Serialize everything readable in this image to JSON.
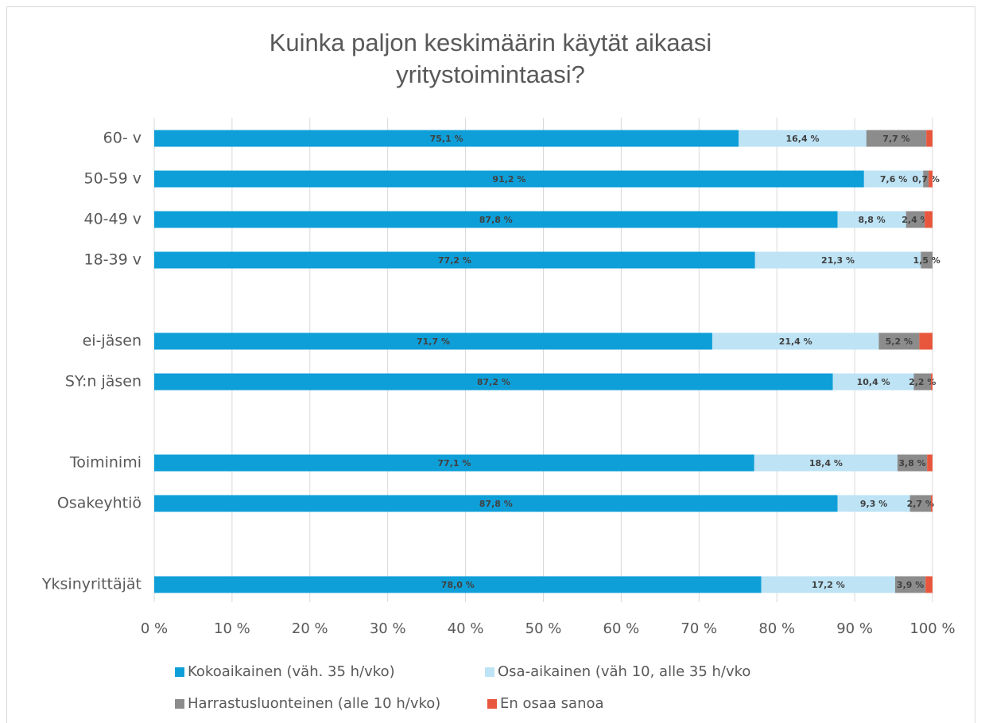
{
  "chart_data": {
    "type": "bar",
    "orientation": "horizontal",
    "stacked": true,
    "title": "Kuinka paljon keskimäärin käytät aikaasi yritystoimintaasi?",
    "categories": [
      "60- v",
      "50-59 v",
      "40-49 v",
      "18-39 v",
      null,
      "ei-jäsen",
      "SY:n jäsen",
      null,
      "Toiminimi",
      "Osakeyhtiö",
      null,
      "Yksinyrittäjät"
    ],
    "series": [
      {
        "name": "Kokoaikainen (väh. 35 h/vko)",
        "color": "#0f9fd8",
        "values": [
          75.1,
          91.2,
          87.8,
          77.2,
          null,
          71.7,
          87.2,
          null,
          77.1,
          87.8,
          null,
          78.0
        ],
        "value_labels": [
          "75,1 %",
          "91,2 %",
          "87,8 %",
          "77,2 %",
          null,
          "71,7 %",
          "87,2 %",
          null,
          "77,1 %",
          "87,8 %",
          null,
          "78,0 %"
        ]
      },
      {
        "name": "Osa-aikainen (väh 10, alle 35 h/vko",
        "color": "#bde3f5",
        "values": [
          16.4,
          7.6,
          8.8,
          21.3,
          null,
          21.4,
          10.4,
          null,
          18.4,
          9.3,
          null,
          17.2
        ],
        "value_labels": [
          "16,4 %",
          "7,6 %",
          "8,8 %",
          "21,3 %",
          null,
          "21,4 %",
          "10,4 %",
          null,
          "18,4 %",
          "9,3 %",
          null,
          "17,2 %"
        ]
      },
      {
        "name": "Harrastusluonteinen (alle 10 h/vko)",
        "color": "#8c8c8c",
        "values": [
          7.7,
          0.7,
          2.4,
          1.5,
          null,
          5.2,
          2.2,
          null,
          3.8,
          2.7,
          null,
          3.9
        ],
        "value_labels": [
          "7,7 %",
          "0,7 %",
          "2,4 %",
          "1,5 %",
          null,
          "5,2 %",
          "2,2 %",
          null,
          "3,8 %",
          "2,7 %",
          null,
          "3,9 %"
        ]
      },
      {
        "name": "En osaa sanoa",
        "color": "#e8573d",
        "values": [
          0.8,
          0.5,
          1.0,
          0,
          null,
          1.7,
          0.2,
          null,
          0.7,
          0.2,
          null,
          0.9
        ]
      }
    ],
    "xlim": [
      0,
      100
    ],
    "xticks": [
      {
        "value": 0,
        "label": "0 %"
      },
      {
        "value": 10,
        "label": "10 %"
      },
      {
        "value": 20,
        "label": "20 %"
      },
      {
        "value": 30,
        "label": "30 %"
      },
      {
        "value": 40,
        "label": "40 %"
      },
      {
        "value": 50,
        "label": "50 %"
      },
      {
        "value": 60,
        "label": "60 %"
      },
      {
        "value": 70,
        "label": "70 %"
      },
      {
        "value": 80,
        "label": "80 %"
      },
      {
        "value": 90,
        "label": "90 %"
      },
      {
        "value": 100,
        "label": "100 %"
      }
    ],
    "grid": true
  }
}
